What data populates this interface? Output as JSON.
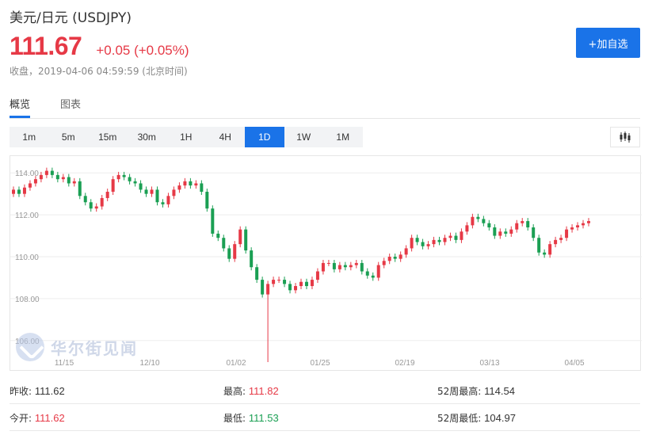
{
  "header": {
    "title": "美元/日元 (USDJPY)",
    "price": "111.67",
    "change": "+0.05 (+0.05%)",
    "close_time": "收盘，2019-04-06 04:59:59 (北京时间)",
    "add_button": "+加自选"
  },
  "tabs": [
    {
      "label": "概览"
    },
    {
      "label": "图表"
    }
  ],
  "periods": [
    "1m",
    "5m",
    "15m",
    "30m",
    "1H",
    "4H",
    "1D",
    "1W",
    "1M"
  ],
  "active_period": "1D",
  "watermark": "华尔街见闻",
  "colors": {
    "up": "#e63946",
    "down": "#1a9f53",
    "accent": "#1a73e8"
  },
  "chart_data": {
    "type": "candlestick",
    "y_ticks": [
      "114.00",
      "112.00",
      "110.00",
      "108.00",
      "106.00"
    ],
    "x_ticks": [
      "11/15",
      "12/10",
      "01/02",
      "01/25",
      "02/19",
      "03/13",
      "04/05"
    ],
    "ylim": [
      105.5,
      114.5
    ],
    "grid": true,
    "series_close": [
      113.2,
      113.0,
      113.3,
      113.5,
      113.7,
      113.9,
      114.1,
      113.9,
      113.7,
      113.8,
      113.5,
      113.6,
      112.9,
      112.6,
      112.3,
      112.4,
      112.8,
      113.1,
      113.7,
      113.9,
      113.8,
      113.6,
      113.5,
      113.2,
      113.0,
      113.2,
      112.6,
      112.5,
      112.9,
      113.2,
      113.4,
      113.6,
      113.4,
      113.5,
      113.1,
      112.3,
      111.1,
      110.9,
      110.4,
      109.9,
      110.6,
      111.3,
      110.3,
      109.5,
      108.9,
      108.2,
      108.7,
      108.9,
      108.9,
      108.7,
      108.4,
      108.6,
      108.8,
      108.6,
      108.9,
      109.3,
      109.7,
      109.7,
      109.4,
      109.6,
      109.5,
      109.6,
      109.7,
      109.3,
      109.1,
      109.0,
      109.6,
      109.8,
      110.0,
      109.9,
      110.1,
      110.4,
      110.9,
      110.7,
      110.5,
      110.6,
      110.8,
      110.7,
      110.9,
      111.0,
      110.8,
      111.2,
      111.5,
      111.9,
      111.8,
      111.6,
      111.4,
      111.0,
      111.2,
      111.1,
      111.3,
      111.6,
      111.7,
      111.4,
      110.9,
      110.2,
      110.1,
      110.6,
      110.8,
      110.9,
      111.3,
      111.4,
      111.5,
      111.6,
      111.7
    ]
  },
  "stats": {
    "prev_close_label": "昨收:",
    "prev_close": "111.62",
    "high_label": "最高:",
    "high": "111.82",
    "w52_high_label": "52周最高:",
    "w52_high": "114.54",
    "open_label": "今开:",
    "open": "111.62",
    "low_label": "最低:",
    "low": "111.53",
    "w52_low_label": "52周最低:",
    "w52_low": "104.97"
  }
}
